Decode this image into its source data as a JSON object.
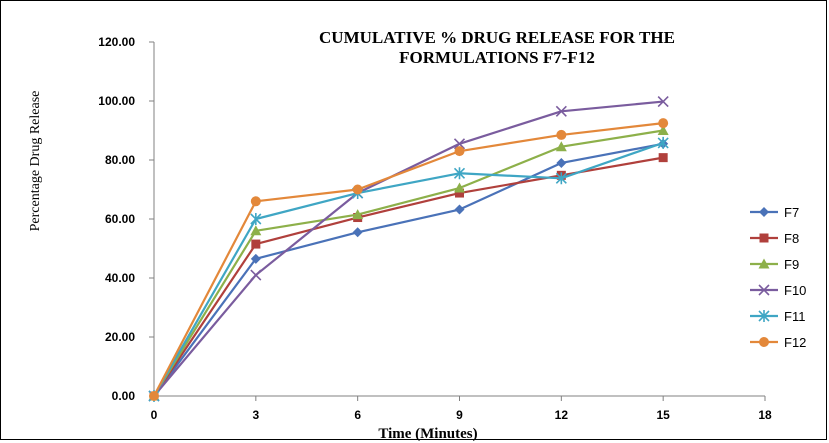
{
  "chart_data": {
    "type": "line",
    "title_lines": [
      "CUMULATIVE % DRUG RELEASE FOR THE",
      "FORMULATIONS F7-F12"
    ],
    "xlabel": "Time (Minutes)",
    "ylabel": "Percentage Drug Release",
    "x": [
      0,
      3,
      6,
      9,
      12,
      15
    ],
    "xlim": [
      0,
      18
    ],
    "xticks": [
      "0",
      "3",
      "6",
      "9",
      "12",
      "15",
      "18"
    ],
    "ylim": [
      0,
      120
    ],
    "yticks": [
      "0.00",
      "20.00",
      "40.00",
      "60.00",
      "80.00",
      "100.00",
      "120.00"
    ],
    "grid": false,
    "legend_position": "right",
    "series": [
      {
        "name": "F7",
        "color": "#4a72b8",
        "marker": "diamond",
        "values": [
          0,
          46.5,
          55.5,
          63.2,
          79.0,
          85.5
        ]
      },
      {
        "name": "F8",
        "color": "#b0403c",
        "marker": "square",
        "values": [
          0,
          51.5,
          60.5,
          68.8,
          74.8,
          80.8
        ]
      },
      {
        "name": "F9",
        "color": "#8db04a",
        "marker": "triangle",
        "values": [
          0,
          56.0,
          61.5,
          70.5,
          84.5,
          90.0
        ]
      },
      {
        "name": "F10",
        "color": "#7a5c9e",
        "marker": "x",
        "values": [
          0,
          41.0,
          68.8,
          85.5,
          96.5,
          99.8
        ]
      },
      {
        "name": "F11",
        "color": "#3fa6c4",
        "marker": "star",
        "values": [
          0,
          60.0,
          68.8,
          75.5,
          73.8,
          85.8
        ]
      },
      {
        "name": "F12",
        "color": "#e3883a",
        "marker": "circle",
        "values": [
          0,
          66.0,
          70.0,
          83.0,
          88.5,
          92.5
        ]
      }
    ]
  }
}
